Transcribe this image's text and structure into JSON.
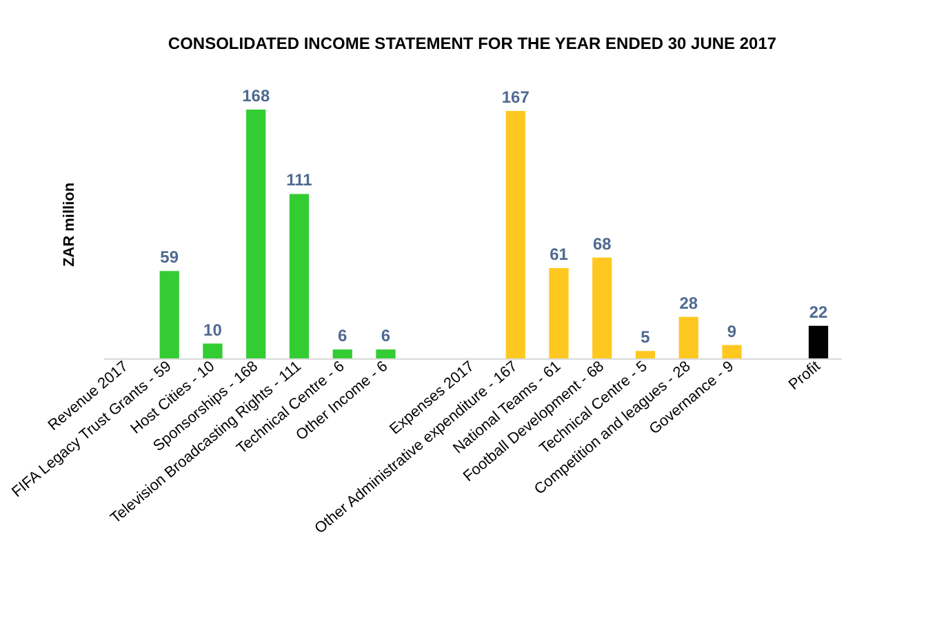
{
  "chart_data": {
    "type": "bar",
    "title": "CONSOLIDATED INCOME STATEMENT FOR THE YEAR ENDED 30 JUNE 2017",
    "ylabel": "ZAR million",
    "categories": [
      "Revenue 2017",
      "FIFA Legacy Trust Grants - 59",
      "Host Cities - 10",
      "Sponsorships - 168",
      "Television Broadcasting Rights - 111",
      "Technical Centre - 6",
      "Other Income - 6",
      null,
      "Expenses 2017",
      "Other Administrative expenditure - 167",
      "National Teams - 61",
      "Football Development - 68",
      "Technical Centre - 5",
      "Competition and leagues - 28",
      "Governance - 9",
      null,
      "Profit"
    ],
    "values": [
      null,
      59,
      10,
      168,
      111,
      6,
      6,
      null,
      null,
      167,
      61,
      68,
      5,
      28,
      9,
      null,
      22
    ],
    "colors": [
      "#33cc33",
      "#33cc33",
      "#33cc33",
      "#33cc33",
      "#33cc33",
      "#33cc33",
      "#33cc33",
      "#33cc33",
      "#ffc820",
      "#ffc820",
      "#ffc820",
      "#ffc820",
      "#ffc820",
      "#ffc820",
      "#ffc820",
      "#000000",
      "#000000"
    ],
    "data_labels": true
  }
}
